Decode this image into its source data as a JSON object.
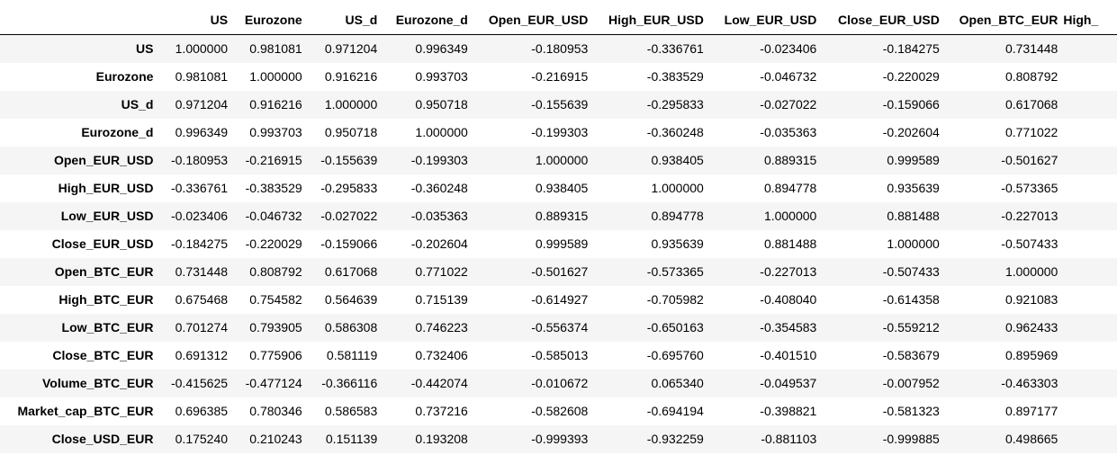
{
  "table": {
    "columns": [
      "US",
      "Eurozone",
      "US_d",
      "Eurozone_d",
      "Open_EUR_USD",
      "High_EUR_USD",
      "Low_EUR_USD",
      "Close_EUR_USD",
      "Open_BTC_EUR",
      "High_"
    ],
    "rows": [
      {
        "label": "US",
        "values": [
          "1.000000",
          "0.981081",
          "0.971204",
          "0.996349",
          "-0.180953",
          "-0.336761",
          "-0.023406",
          "-0.184275",
          "0.731448"
        ]
      },
      {
        "label": "Eurozone",
        "values": [
          "0.981081",
          "1.000000",
          "0.916216",
          "0.993703",
          "-0.216915",
          "-0.383529",
          "-0.046732",
          "-0.220029",
          "0.808792"
        ]
      },
      {
        "label": "US_d",
        "values": [
          "0.971204",
          "0.916216",
          "1.000000",
          "0.950718",
          "-0.155639",
          "-0.295833",
          "-0.027022",
          "-0.159066",
          "0.617068"
        ]
      },
      {
        "label": "Eurozone_d",
        "values": [
          "0.996349",
          "0.993703",
          "0.950718",
          "1.000000",
          "-0.199303",
          "-0.360248",
          "-0.035363",
          "-0.202604",
          "0.771022"
        ]
      },
      {
        "label": "Open_EUR_USD",
        "values": [
          "-0.180953",
          "-0.216915",
          "-0.155639",
          "-0.199303",
          "1.000000",
          "0.938405",
          "0.889315",
          "0.999589",
          "-0.501627"
        ]
      },
      {
        "label": "High_EUR_USD",
        "values": [
          "-0.336761",
          "-0.383529",
          "-0.295833",
          "-0.360248",
          "0.938405",
          "1.000000",
          "0.894778",
          "0.935639",
          "-0.573365"
        ]
      },
      {
        "label": "Low_EUR_USD",
        "values": [
          "-0.023406",
          "-0.046732",
          "-0.027022",
          "-0.035363",
          "0.889315",
          "0.894778",
          "1.000000",
          "0.881488",
          "-0.227013"
        ]
      },
      {
        "label": "Close_EUR_USD",
        "values": [
          "-0.184275",
          "-0.220029",
          "-0.159066",
          "-0.202604",
          "0.999589",
          "0.935639",
          "0.881488",
          "1.000000",
          "-0.507433"
        ]
      },
      {
        "label": "Open_BTC_EUR",
        "values": [
          "0.731448",
          "0.808792",
          "0.617068",
          "0.771022",
          "-0.501627",
          "-0.573365",
          "-0.227013",
          "-0.507433",
          "1.000000"
        ]
      },
      {
        "label": "High_BTC_EUR",
        "values": [
          "0.675468",
          "0.754582",
          "0.564639",
          "0.715139",
          "-0.614927",
          "-0.705982",
          "-0.408040",
          "-0.614358",
          "0.921083"
        ]
      },
      {
        "label": "Low_BTC_EUR",
        "values": [
          "0.701274",
          "0.793905",
          "0.586308",
          "0.746223",
          "-0.556374",
          "-0.650163",
          "-0.354583",
          "-0.559212",
          "0.962433"
        ]
      },
      {
        "label": "Close_BTC_EUR",
        "values": [
          "0.691312",
          "0.775906",
          "0.581119",
          "0.732406",
          "-0.585013",
          "-0.695760",
          "-0.401510",
          "-0.583679",
          "0.895969"
        ]
      },
      {
        "label": "Volume_BTC_EUR",
        "values": [
          "-0.415625",
          "-0.477124",
          "-0.366116",
          "-0.442074",
          "-0.010672",
          "0.065340",
          "-0.049537",
          "-0.007952",
          "-0.463303"
        ]
      },
      {
        "label": "Market_cap_BTC_EUR",
        "values": [
          "0.696385",
          "0.780346",
          "0.586583",
          "0.737216",
          "-0.582608",
          "-0.694194",
          "-0.398821",
          "-0.581323",
          "0.897177"
        ]
      },
      {
        "label": "Close_USD_EUR",
        "values": [
          "0.175240",
          "0.210243",
          "0.151139",
          "0.193208",
          "-0.999393",
          "-0.932259",
          "-0.881103",
          "-0.999885",
          "0.498665"
        ]
      }
    ]
  }
}
